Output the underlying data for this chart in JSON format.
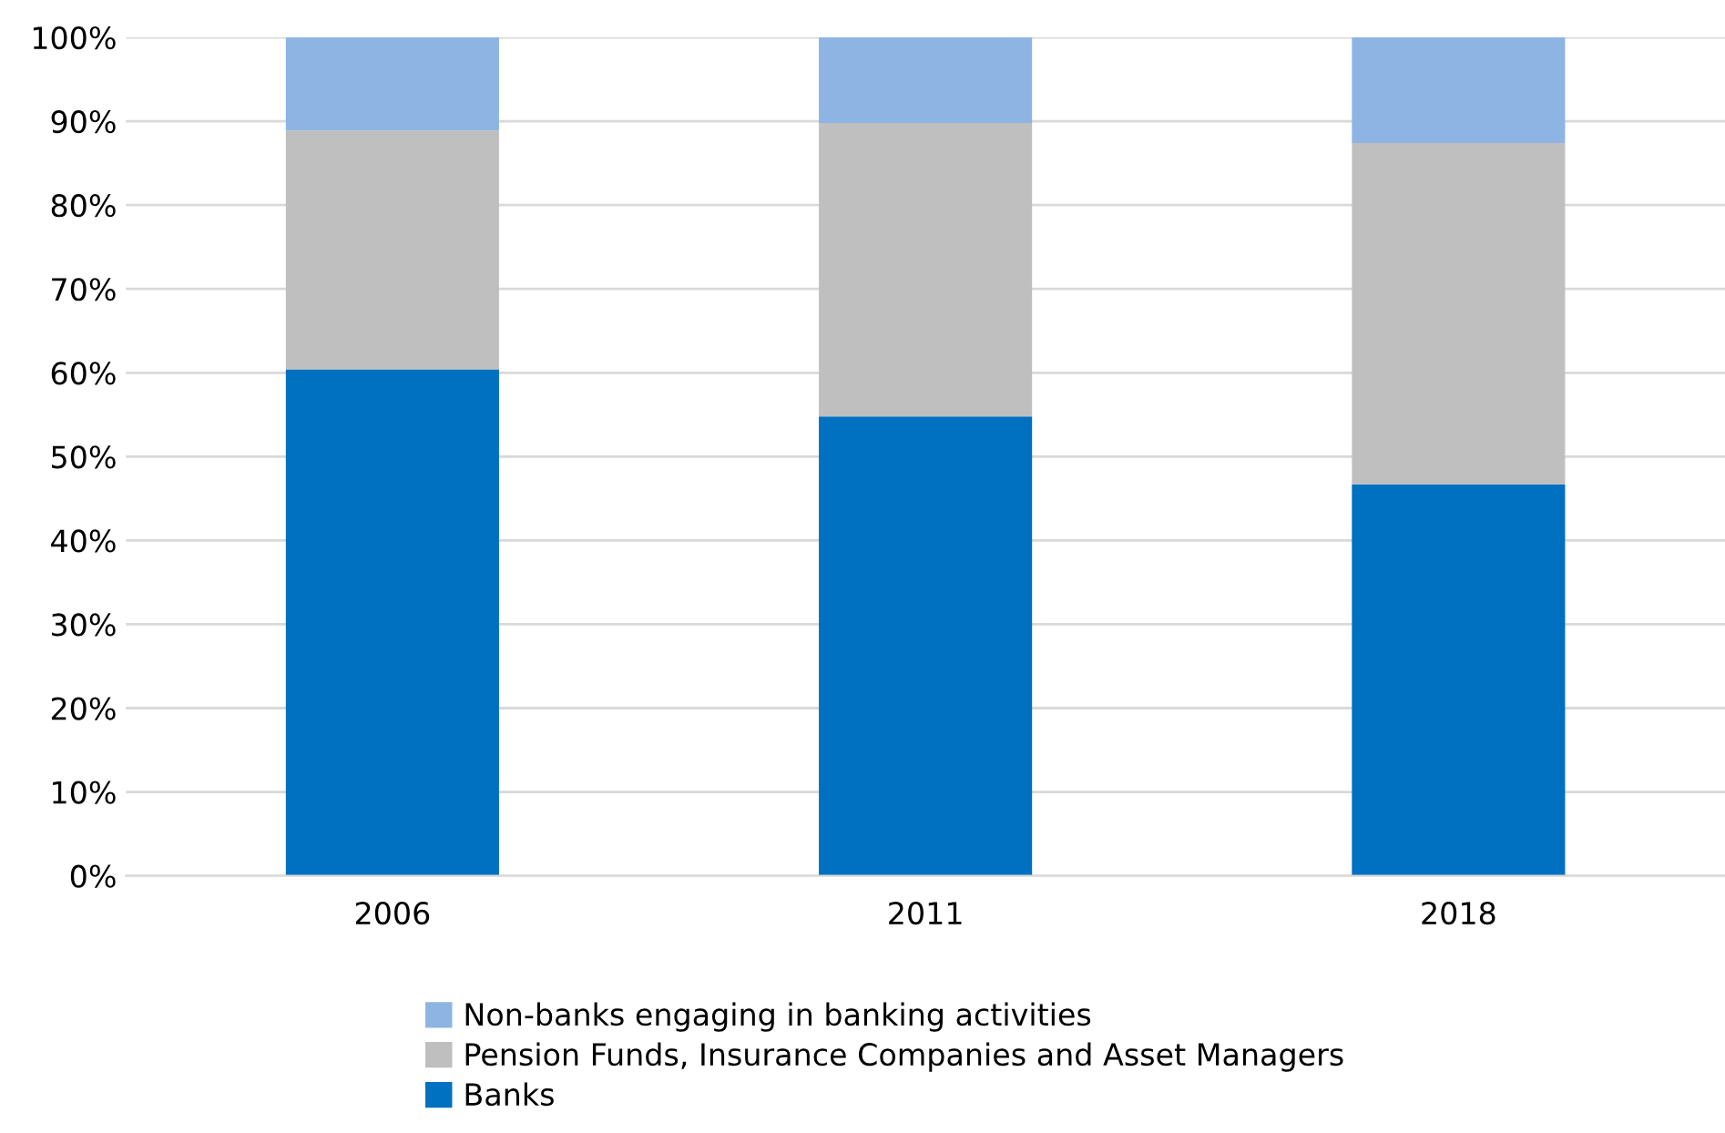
{
  "chart_data": {
    "type": "bar",
    "stacked": true,
    "categories": [
      "2006",
      "2011",
      "2018"
    ],
    "series": [
      {
        "name": "Banks",
        "color": "#0070c0",
        "values": [
          60.4,
          54.8,
          46.7
        ]
      },
      {
        "name": "Pension Funds, Insurance Companies and Asset Managers",
        "color": "#bfbfbf",
        "values": [
          28.5,
          35.0,
          40.7
        ]
      },
      {
        "name": "Non-banks engaging in banking activities",
        "color": "#8eb4e3",
        "values": [
          11.1,
          10.2,
          12.6
        ]
      }
    ],
    "ylim": [
      0,
      100
    ],
    "yticks": [
      {
        "value": 0,
        "label": "0%"
      },
      {
        "value": 10,
        "label": "10%"
      },
      {
        "value": 20,
        "label": "20%"
      },
      {
        "value": 30,
        "label": "30%"
      },
      {
        "value": 40,
        "label": "40%"
      },
      {
        "value": 50,
        "label": "50%"
      },
      {
        "value": 60,
        "label": "60%"
      },
      {
        "value": 70,
        "label": "70%"
      },
      {
        "value": 80,
        "label": "80%"
      },
      {
        "value": 90,
        "label": "90%"
      },
      {
        "value": 100,
        "label": "100%"
      }
    ],
    "grid": "y",
    "legend": "bottom"
  }
}
